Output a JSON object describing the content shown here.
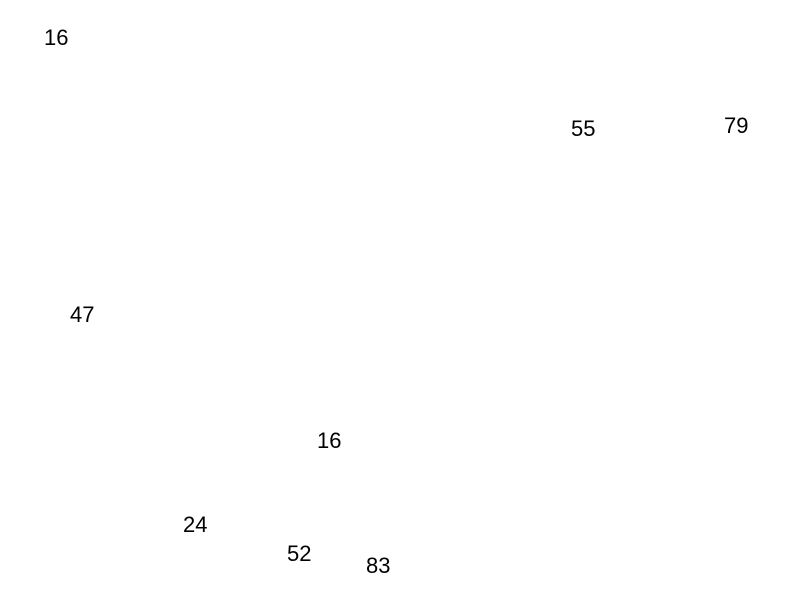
{
  "numbers": [
    "16",
    "55",
    "79",
    "47",
    "16",
    "24",
    "52",
    "83"
  ]
}
